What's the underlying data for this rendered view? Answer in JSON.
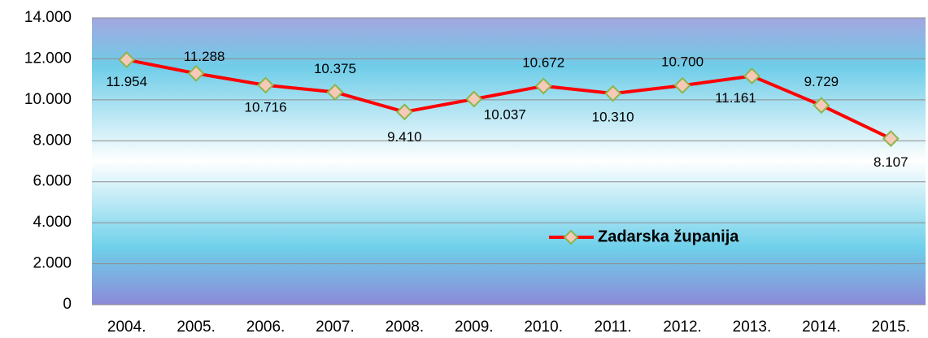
{
  "chart_data": {
    "type": "line",
    "categories": [
      "2004.",
      "2005.",
      "2006.",
      "2007.",
      "2008.",
      "2009.",
      "2010.",
      "2011.",
      "2012.",
      "2013.",
      "2014.",
      "2015."
    ],
    "series": [
      {
        "name": "Zadarska županija",
        "color": "#ff0000",
        "marker_fill": "#f6c9b9",
        "marker_stroke": "#8db54a",
        "values": [
          11954,
          11288,
          10716,
          10375,
          9410,
          10037,
          10672,
          10310,
          10700,
          11161,
          9729,
          8107
        ],
        "value_labels": [
          "11.954",
          "11.288",
          "10.716",
          "10.375",
          "9.410",
          "10.037",
          "10.672",
          "10.310",
          "10.700",
          "11.161",
          "9.729",
          "8.107"
        ]
      }
    ],
    "ylim": [
      0,
      14000
    ],
    "yticks": [
      0,
      {
        "value": 2000,
        "label": "2.000"
      },
      {
        "value": 4000,
        "label": "4.000"
      },
      {
        "value": 6000,
        "label": "6.000"
      },
      {
        "value": 8000,
        "label": "8.000"
      },
      {
        "value": 10000,
        "label": "10.000"
      },
      {
        "value": 12000,
        "label": "12.000"
      },
      {
        "value": 14000,
        "label": "14.000"
      }
    ],
    "grid": true,
    "legend": "center-right"
  }
}
